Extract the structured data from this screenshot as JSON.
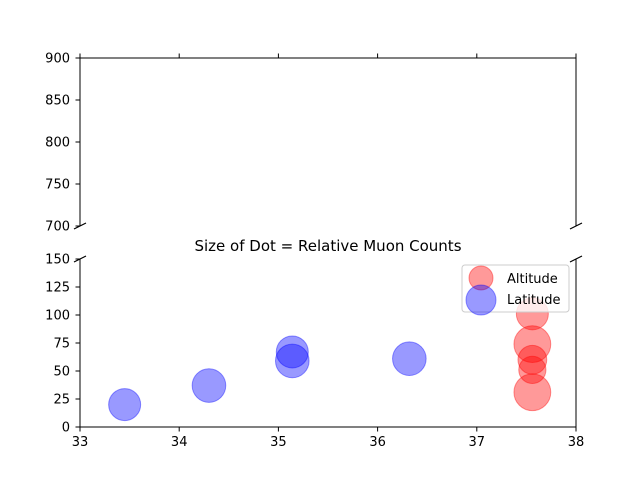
{
  "chart_data": {
    "type": "scatter",
    "title": "Size of Dot = Relative Muon Counts",
    "xlabel": "",
    "ylabel": "",
    "broken_y_axis": true,
    "upper_panel": {
      "ylim": [
        700,
        900
      ],
      "yticks": [
        "700",
        "750",
        "800",
        "850",
        "900"
      ]
    },
    "lower_panel": {
      "ylim": [
        0,
        150
      ],
      "yticks": [
        "0",
        "25",
        "50",
        "75",
        "100",
        "125",
        "150"
      ]
    },
    "xlim": [
      33,
      38
    ],
    "xticks": [
      "33",
      "34",
      "35",
      "36",
      "37",
      "38"
    ],
    "grid": false,
    "legend_position": "upper-right",
    "series": [
      {
        "name": "Altitude",
        "color": "#ff0000",
        "points": [
          {
            "x": 37.56,
            "y": 101
          },
          {
            "x": 37.56,
            "y": 74
          },
          {
            "x": 37.56,
            "y": 60
          },
          {
            "x": 37.56,
            "y": 51
          },
          {
            "x": 37.56,
            "y": 31
          }
        ],
        "relative_sizes": [
          1,
          1.15,
          0.9,
          0.85,
          1.15
        ]
      },
      {
        "name": "Latitude",
        "color": "#0000ff",
        "points": [
          {
            "x": 33.45,
            "y": 20
          },
          {
            "x": 34.3,
            "y": 37
          },
          {
            "x": 35.14,
            "y": 67
          },
          {
            "x": 35.14,
            "y": 59
          },
          {
            "x": 36.32,
            "y": 61
          }
        ],
        "relative_sizes": [
          1,
          1.05,
          1,
          1.05,
          1.05
        ]
      }
    ]
  }
}
